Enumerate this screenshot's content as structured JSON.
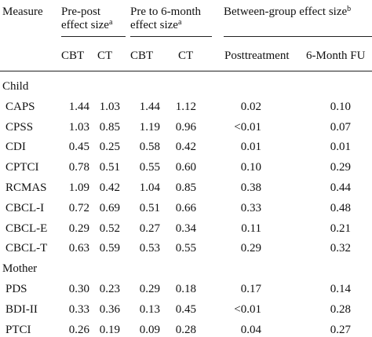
{
  "header": {
    "measure": "Measure",
    "group1_line1": "Pre-post",
    "group1_line2": "effect size",
    "group1_sup": "a",
    "group2_line1": "Pre to 6-month",
    "group2_line2": "effect size",
    "group2_sup": "a",
    "group3_line1": "Between-group effect size",
    "group3_sup": "b",
    "sub": [
      "CBT",
      "CT",
      "CBT",
      "CT",
      "Posttreatment",
      "6-Month FU"
    ]
  },
  "sections": [
    {
      "label": "Child",
      "rows": [
        {
          "measure": "CAPS",
          "v": [
            "1.44",
            "1.03",
            "1.44",
            "1.12",
            "0.02",
            "0.10"
          ]
        },
        {
          "measure": "CPSS",
          "v": [
            "1.03",
            "0.85",
            "1.19",
            "0.96",
            "<0.01",
            "0.07"
          ]
        },
        {
          "measure": "CDI",
          "v": [
            "0.45",
            "0.25",
            "0.58",
            "0.42",
            "0.01",
            "0.01"
          ]
        },
        {
          "measure": "CPTCI",
          "v": [
            "0.78",
            "0.51",
            "0.55",
            "0.60",
            "0.10",
            "0.29"
          ]
        },
        {
          "measure": "RCMAS",
          "v": [
            "1.09",
            "0.42",
            "1.04",
            "0.85",
            "0.38",
            "0.44"
          ]
        },
        {
          "measure": "CBCL-I",
          "v": [
            "0.72",
            "0.69",
            "0.51",
            "0.66",
            "0.33",
            "0.48"
          ]
        },
        {
          "measure": "CBCL-E",
          "v": [
            "0.29",
            "0.52",
            "0.27",
            "0.34",
            "0.11",
            "0.21"
          ]
        },
        {
          "measure": "CBCL-T",
          "v": [
            "0.63",
            "0.59",
            "0.53",
            "0.55",
            "0.29",
            "0.32"
          ]
        }
      ]
    },
    {
      "label": "Mother",
      "rows": [
        {
          "measure": "PDS",
          "v": [
            "0.30",
            "0.23",
            "0.29",
            "0.18",
            "0.17",
            "0.14"
          ]
        },
        {
          "measure": "BDI-II",
          "v": [
            "0.33",
            "0.36",
            "0.13",
            "0.45",
            "<0.01",
            "0.28"
          ]
        },
        {
          "measure": "PTCI",
          "v": [
            "0.26",
            "0.19",
            "0.09",
            "0.28",
            "0.04",
            "0.27"
          ]
        }
      ]
    }
  ]
}
